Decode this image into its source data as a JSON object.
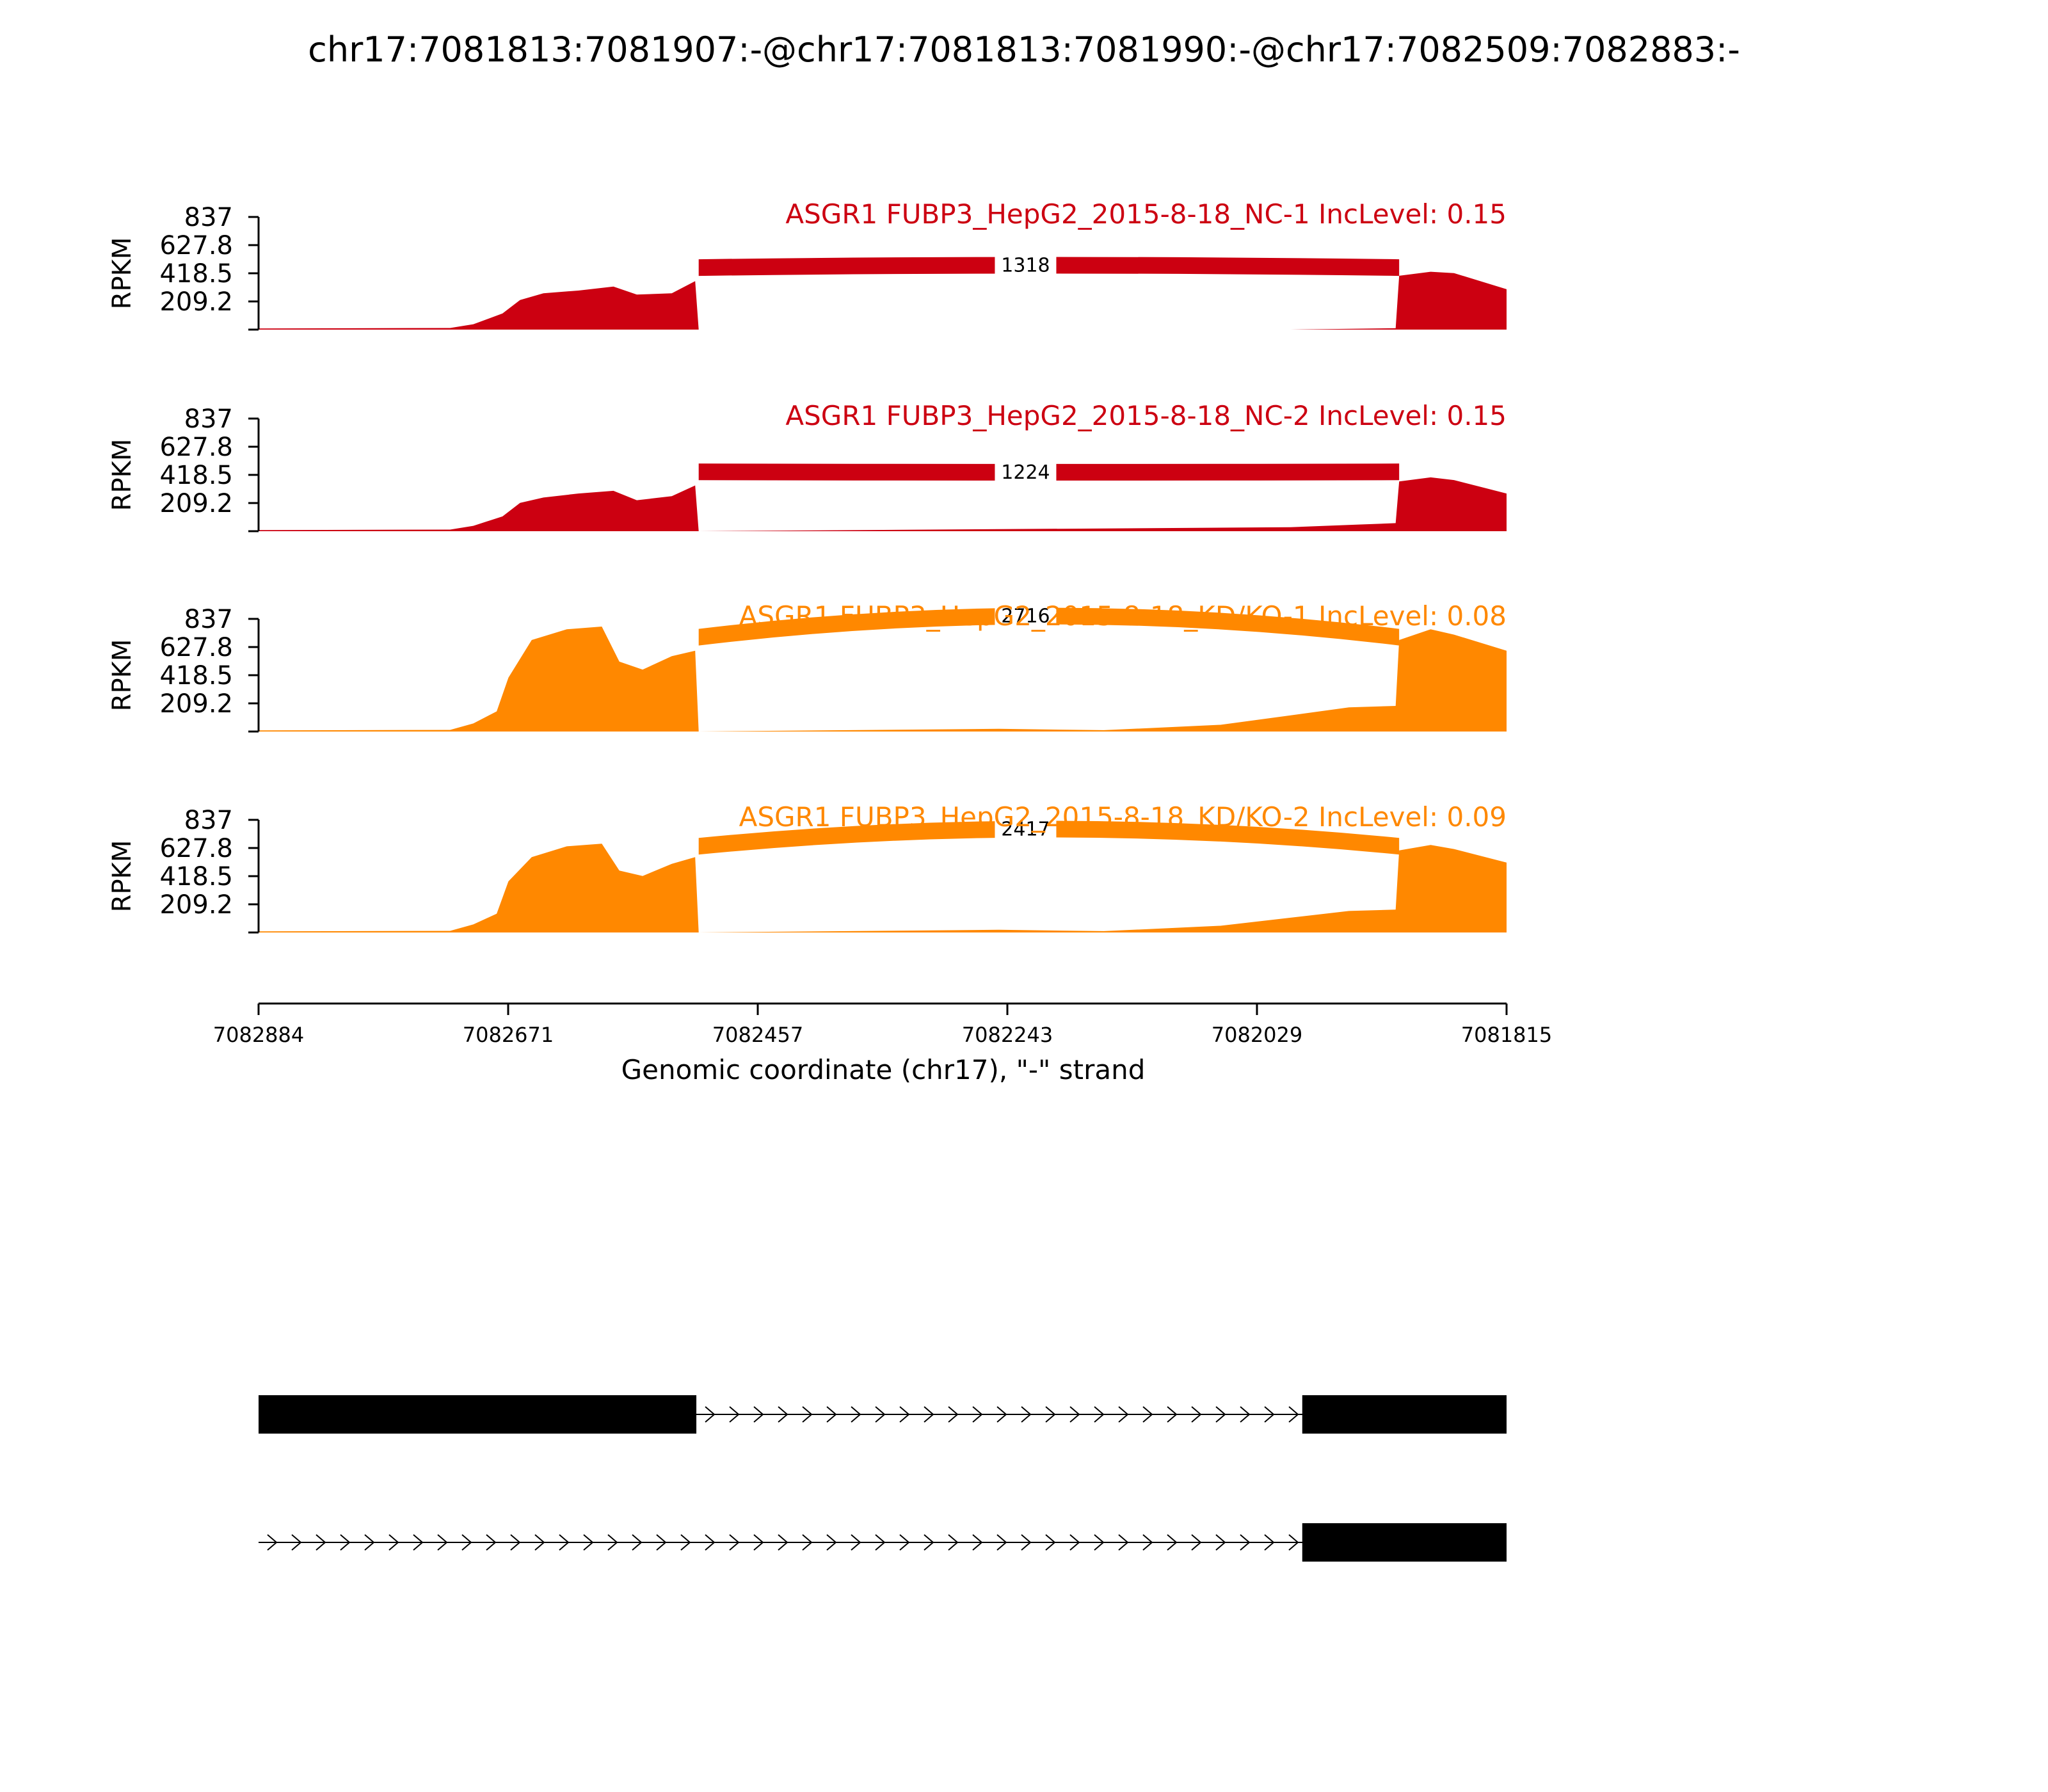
{
  "title": "chr17:7081813:7081907:-@chr17:7081813:7081990:-@chr17:7082509:7082883:-",
  "chart_data": {
    "type": "area",
    "ylabel": "RPKM",
    "xlabel": "Genomic coordinate (chr17), \"-\" strand",
    "y_ticks": [
      "837",
      "627.8",
      "418.5",
      "209.2"
    ],
    "ylim": [
      0,
      837
    ],
    "x_ticks": [
      "7082884",
      "7082671",
      "7082457",
      "7082243",
      "7082029",
      "7081815"
    ],
    "xlim": [
      7082884,
      7081815
    ],
    "tracks": [
      {
        "label": "ASGR1 FUBP3_HepG2_2015-8-18_NC-1 IncLevel: 0.15",
        "color": "#cc0011",
        "junction_count": "1318",
        "profile": [
          [
            7082884,
            8
          ],
          [
            7082720,
            12
          ],
          [
            7082700,
            40
          ],
          [
            7082675,
            120
          ],
          [
            7082660,
            220
          ],
          [
            7082640,
            270
          ],
          [
            7082610,
            290
          ],
          [
            7082580,
            320
          ],
          [
            7082560,
            260
          ],
          [
            7082530,
            270
          ],
          [
            7082510,
            360
          ],
          [
            7082507,
            0
          ],
          [
            7082000,
            0
          ],
          [
            7081910,
            10
          ],
          [
            7081907,
            400
          ],
          [
            7081880,
            430
          ],
          [
            7081860,
            420
          ],
          [
            7081815,
            300
          ]
        ],
        "junction_max": 540,
        "junction_min": 380
      },
      {
        "label": "ASGR1 FUBP3_HepG2_2015-8-18_NC-2 IncLevel: 0.15",
        "color": "#cc0011",
        "junction_count": "1224",
        "profile": [
          [
            7082884,
            8
          ],
          [
            7082720,
            12
          ],
          [
            7082700,
            40
          ],
          [
            7082675,
            110
          ],
          [
            7082660,
            210
          ],
          [
            7082640,
            250
          ],
          [
            7082610,
            280
          ],
          [
            7082580,
            300
          ],
          [
            7082560,
            230
          ],
          [
            7082530,
            260
          ],
          [
            7082510,
            340
          ],
          [
            7082507,
            0
          ],
          [
            7082000,
            30
          ],
          [
            7081940,
            50
          ],
          [
            7081910,
            60
          ],
          [
            7081907,
            370
          ],
          [
            7081880,
            400
          ],
          [
            7081860,
            380
          ],
          [
            7081815,
            280
          ]
        ],
        "junction_max": 500,
        "junction_min": 360
      },
      {
        "label": "ASGR1 FUBP3_HepG2_2015-8-18_KD/KO-1 IncLevel: 0.08",
        "color": "#ff8800",
        "junction_count": "2716",
        "profile": [
          [
            7082884,
            8
          ],
          [
            7082720,
            12
          ],
          [
            7082700,
            60
          ],
          [
            7082680,
            150
          ],
          [
            7082670,
            400
          ],
          [
            7082650,
            680
          ],
          [
            7082620,
            760
          ],
          [
            7082590,
            780
          ],
          [
            7082575,
            520
          ],
          [
            7082555,
            460
          ],
          [
            7082530,
            560
          ],
          [
            7082510,
            600
          ],
          [
            7082507,
            0
          ],
          [
            7082250,
            20
          ],
          [
            7082160,
            10
          ],
          [
            7082060,
            50
          ],
          [
            7082000,
            120
          ],
          [
            7081950,
            180
          ],
          [
            7081910,
            190
          ],
          [
            7081907,
            680
          ],
          [
            7081880,
            760
          ],
          [
            7081860,
            720
          ],
          [
            7081815,
            600
          ]
        ],
        "junction_max": 920,
        "junction_min": 620
      },
      {
        "label": "ASGR1 FUBP3_HepG2_2015-8-18_KD/KO-2 IncLevel: 0.09",
        "color": "#ff8800",
        "junction_count": "2417",
        "profile": [
          [
            7082884,
            8
          ],
          [
            7082720,
            12
          ],
          [
            7082700,
            60
          ],
          [
            7082680,
            140
          ],
          [
            7082670,
            380
          ],
          [
            7082650,
            560
          ],
          [
            7082620,
            640
          ],
          [
            7082590,
            660
          ],
          [
            7082575,
            460
          ],
          [
            7082555,
            420
          ],
          [
            7082530,
            510
          ],
          [
            7082510,
            560
          ],
          [
            7082507,
            0
          ],
          [
            7082250,
            20
          ],
          [
            7082160,
            10
          ],
          [
            7082060,
            50
          ],
          [
            7082000,
            110
          ],
          [
            7081950,
            160
          ],
          [
            7081910,
            170
          ],
          [
            7081907,
            610
          ],
          [
            7081880,
            650
          ],
          [
            7081860,
            620
          ],
          [
            7081815,
            520
          ]
        ],
        "junction_max": 830,
        "junction_min": 560
      }
    ],
    "junction": {
      "donor": 7082507,
      "acceptor": 7081907
    },
    "isoforms": [
      {
        "exons": [
          [
            7082884,
            7082509
          ],
          [
            7081990,
            7081815
          ]
        ]
      },
      {
        "exons": [
          [
            7081990,
            7081815
          ]
        ]
      }
    ]
  }
}
